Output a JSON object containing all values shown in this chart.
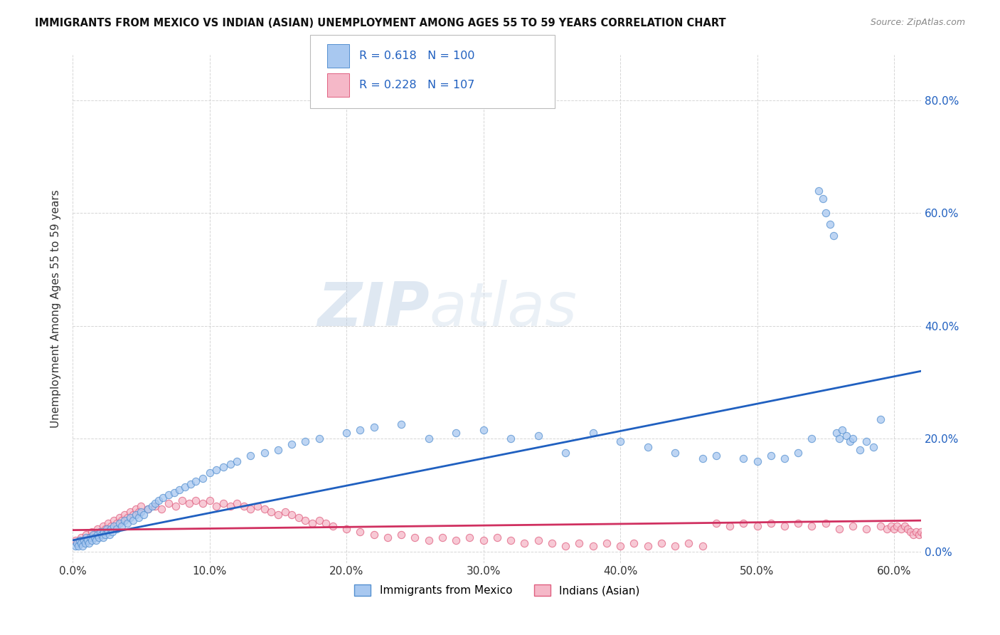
{
  "title": "IMMIGRANTS FROM MEXICO VS INDIAN (ASIAN) UNEMPLOYMENT AMONG AGES 55 TO 59 YEARS CORRELATION CHART",
  "source": "Source: ZipAtlas.com",
  "ylabel_label": "Unemployment Among Ages 55 to 59 years",
  "xlim": [
    0.0,
    0.62
  ],
  "ylim": [
    -0.02,
    0.88
  ],
  "legend_label1": "Immigrants from Mexico",
  "legend_label2": "Indians (Asian)",
  "R1": "0.618",
  "N1": "100",
  "R2": "0.228",
  "N2": "107",
  "color_blue": "#a8c8f0",
  "color_pink": "#f5b8c8",
  "color_blue_edge": "#5590d0",
  "color_pink_edge": "#e06080",
  "line_blue": "#2060c0",
  "line_pink": "#d03060",
  "watermark_zip": "ZIP",
  "watermark_atlas": "atlas",
  "background": "#ffffff",
  "grid_color": "#cccccc",
  "mexico_x": [
    0.002,
    0.003,
    0.004,
    0.005,
    0.006,
    0.007,
    0.008,
    0.009,
    0.01,
    0.011,
    0.012,
    0.013,
    0.014,
    0.015,
    0.016,
    0.017,
    0.018,
    0.019,
    0.02,
    0.021,
    0.022,
    0.023,
    0.024,
    0.025,
    0.026,
    0.027,
    0.028,
    0.029,
    0.03,
    0.032,
    0.034,
    0.036,
    0.038,
    0.04,
    0.042,
    0.044,
    0.046,
    0.048,
    0.05,
    0.052,
    0.055,
    0.058,
    0.06,
    0.063,
    0.066,
    0.07,
    0.074,
    0.078,
    0.082,
    0.086,
    0.09,
    0.095,
    0.1,
    0.105,
    0.11,
    0.115,
    0.12,
    0.13,
    0.14,
    0.15,
    0.16,
    0.17,
    0.18,
    0.2,
    0.21,
    0.22,
    0.24,
    0.26,
    0.28,
    0.3,
    0.32,
    0.34,
    0.36,
    0.38,
    0.4,
    0.42,
    0.44,
    0.46,
    0.47,
    0.49,
    0.5,
    0.51,
    0.52,
    0.53,
    0.54,
    0.545,
    0.548,
    0.55,
    0.553,
    0.556,
    0.558,
    0.56,
    0.562,
    0.565,
    0.568,
    0.57,
    0.575,
    0.58,
    0.585,
    0.59
  ],
  "mexico_y": [
    0.01,
    0.015,
    0.01,
    0.02,
    0.015,
    0.01,
    0.02,
    0.015,
    0.025,
    0.02,
    0.015,
    0.025,
    0.02,
    0.03,
    0.025,
    0.02,
    0.03,
    0.025,
    0.035,
    0.03,
    0.025,
    0.035,
    0.03,
    0.04,
    0.035,
    0.03,
    0.04,
    0.035,
    0.045,
    0.04,
    0.05,
    0.045,
    0.055,
    0.05,
    0.06,
    0.055,
    0.065,
    0.06,
    0.07,
    0.065,
    0.075,
    0.08,
    0.085,
    0.09,
    0.095,
    0.1,
    0.105,
    0.11,
    0.115,
    0.12,
    0.125,
    0.13,
    0.14,
    0.145,
    0.15,
    0.155,
    0.16,
    0.17,
    0.175,
    0.18,
    0.19,
    0.195,
    0.2,
    0.21,
    0.215,
    0.22,
    0.225,
    0.2,
    0.21,
    0.215,
    0.2,
    0.205,
    0.175,
    0.21,
    0.195,
    0.185,
    0.175,
    0.165,
    0.17,
    0.165,
    0.16,
    0.17,
    0.165,
    0.175,
    0.2,
    0.64,
    0.625,
    0.6,
    0.58,
    0.56,
    0.21,
    0.2,
    0.215,
    0.205,
    0.195,
    0.2,
    0.18,
    0.195,
    0.185,
    0.235
  ],
  "indian_x": [
    0.002,
    0.004,
    0.006,
    0.008,
    0.01,
    0.012,
    0.014,
    0.016,
    0.018,
    0.02,
    0.022,
    0.024,
    0.026,
    0.028,
    0.03,
    0.032,
    0.034,
    0.036,
    0.038,
    0.04,
    0.042,
    0.044,
    0.046,
    0.048,
    0.05,
    0.055,
    0.06,
    0.065,
    0.07,
    0.075,
    0.08,
    0.085,
    0.09,
    0.095,
    0.1,
    0.105,
    0.11,
    0.115,
    0.12,
    0.125,
    0.13,
    0.135,
    0.14,
    0.145,
    0.15,
    0.155,
    0.16,
    0.165,
    0.17,
    0.175,
    0.18,
    0.185,
    0.19,
    0.2,
    0.21,
    0.22,
    0.23,
    0.24,
    0.25,
    0.26,
    0.27,
    0.28,
    0.29,
    0.3,
    0.31,
    0.32,
    0.33,
    0.34,
    0.35,
    0.36,
    0.37,
    0.38,
    0.39,
    0.4,
    0.41,
    0.42,
    0.43,
    0.44,
    0.45,
    0.46,
    0.47,
    0.48,
    0.49,
    0.5,
    0.51,
    0.52,
    0.53,
    0.54,
    0.55,
    0.56,
    0.57,
    0.58,
    0.59,
    0.595,
    0.598,
    0.6,
    0.602,
    0.605,
    0.608,
    0.61,
    0.612,
    0.614,
    0.616,
    0.618,
    0.62,
    0.622,
    0.624
  ],
  "indian_y": [
    0.02,
    0.015,
    0.025,
    0.02,
    0.03,
    0.025,
    0.035,
    0.03,
    0.04,
    0.035,
    0.045,
    0.04,
    0.05,
    0.045,
    0.055,
    0.05,
    0.06,
    0.055,
    0.065,
    0.06,
    0.07,
    0.065,
    0.075,
    0.07,
    0.08,
    0.075,
    0.08,
    0.075,
    0.085,
    0.08,
    0.09,
    0.085,
    0.09,
    0.085,
    0.09,
    0.08,
    0.085,
    0.08,
    0.085,
    0.08,
    0.075,
    0.08,
    0.075,
    0.07,
    0.065,
    0.07,
    0.065,
    0.06,
    0.055,
    0.05,
    0.055,
    0.05,
    0.045,
    0.04,
    0.035,
    0.03,
    0.025,
    0.03,
    0.025,
    0.02,
    0.025,
    0.02,
    0.025,
    0.02,
    0.025,
    0.02,
    0.015,
    0.02,
    0.015,
    0.01,
    0.015,
    0.01,
    0.015,
    0.01,
    0.015,
    0.01,
    0.015,
    0.01,
    0.015,
    0.01,
    0.05,
    0.045,
    0.05,
    0.045,
    0.05,
    0.045,
    0.05,
    0.045,
    0.05,
    0.04,
    0.045,
    0.04,
    0.045,
    0.04,
    0.045,
    0.04,
    0.045,
    0.04,
    0.045,
    0.04,
    0.035,
    0.03,
    0.035,
    0.03,
    0.035,
    0.03,
    0.035
  ],
  "blue_line_x0": 0.0,
  "blue_line_y0": 0.02,
  "blue_line_x1": 0.6,
  "blue_line_y1": 0.32,
  "pink_line_x0": 0.0,
  "pink_line_y0": 0.038,
  "pink_line_x1": 0.6,
  "pink_line_y1": 0.055
}
